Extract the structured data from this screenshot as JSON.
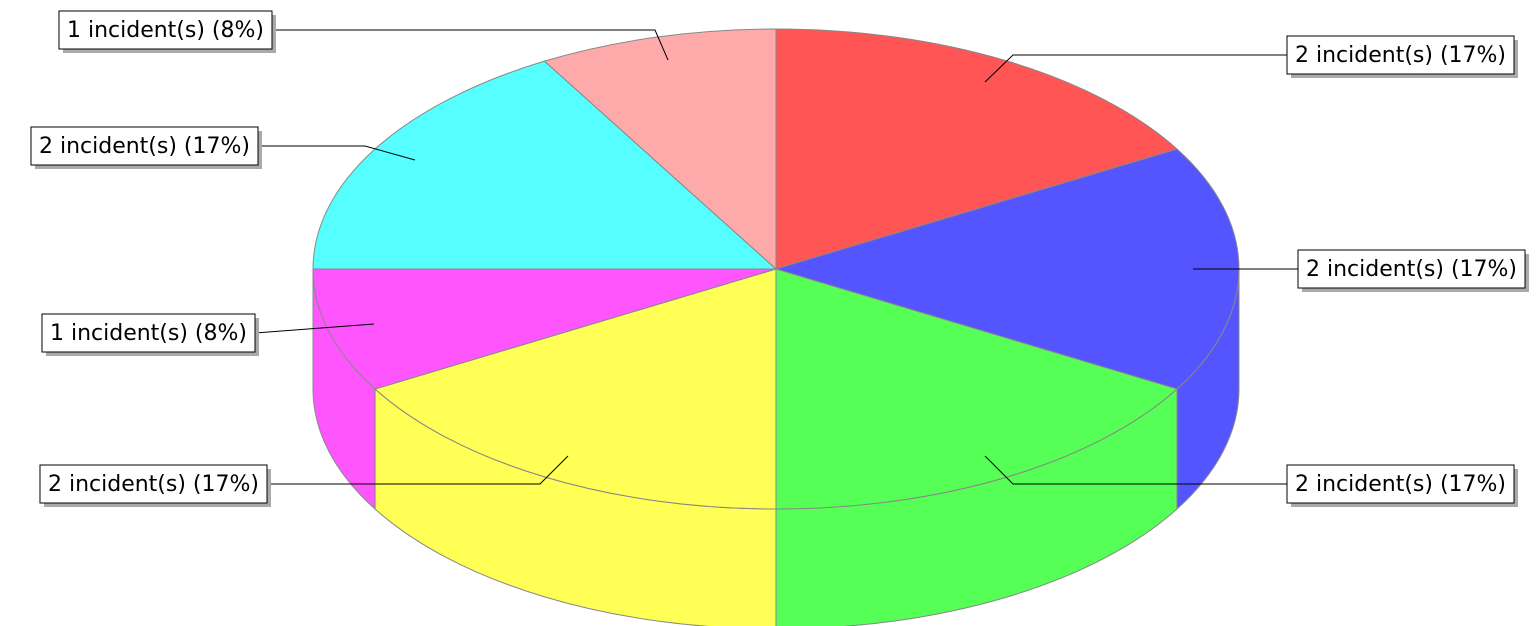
{
  "chart_data": {
    "type": "pie3d",
    "categories": null,
    "values": [
      2,
      2,
      2,
      2,
      1,
      2,
      1
    ],
    "value_labels": [
      "2 incident(s) (17%)",
      "2 incident(s) (17%)",
      "2 incident(s) (17%)",
      "2 incident(s) (17%)",
      "1 incident(s) (8%)",
      "2 incident(s) (17%)",
      "1 incident(s) (8%)"
    ],
    "colors": [
      "#ff5555",
      "#5555ff",
      "#55ff55",
      "#ffff55",
      "#ff55ff",
      "#55ffff",
      "#ffaaaa"
    ],
    "start_angle": 0,
    "direction": "clockwise"
  }
}
